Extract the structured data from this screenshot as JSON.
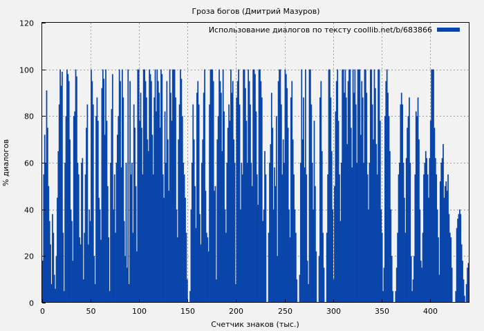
{
  "chart_data": {
    "type": "bar",
    "title": "Гроза богов (Дмитрий Мазуров)",
    "xlabel": "Счетчик знаков (тыс.)",
    "ylabel": "% диалогов",
    "xlim": [
      0,
      440
    ],
    "ylim": [
      0,
      120
    ],
    "x_ticks": [
      0,
      50,
      100,
      150,
      200,
      250,
      300,
      350,
      400
    ],
    "y_ticks": [
      0,
      20,
      40,
      60,
      80,
      100,
      120
    ],
    "grid": true,
    "legend_position": "top-right",
    "series": [
      {
        "name": "Использование диалогов по тексту coollib.net/b/683866",
        "color": "#0a46aa",
        "step": 1,
        "values": [
          18,
          55,
          72,
          60,
          91,
          75,
          50,
          35,
          25,
          8,
          38,
          30,
          12,
          6,
          20,
          45,
          65,
          85,
          100,
          93,
          99,
          30,
          5,
          60,
          80,
          100,
          98,
          95,
          70,
          40,
          35,
          18,
          80,
          82,
          100,
          97,
          60,
          55,
          28,
          25,
          60,
          62,
          10,
          30,
          55,
          75,
          85,
          25,
          40,
          35,
          100,
          95,
          85,
          20,
          8,
          80,
          88,
          78,
          45,
          40,
          27,
          92,
          100,
          96,
          72,
          100,
          78,
          50,
          28,
          5,
          60,
          83,
          98,
          40,
          55,
          30,
          60,
          72,
          80,
          100,
          95,
          58,
          100,
          88,
          35,
          20,
          60,
          15,
          100,
          8,
          95,
          55,
          60,
          30,
          85,
          75,
          50,
          22,
          100,
          100,
          78,
          90,
          75,
          55,
          100,
          100,
          95,
          88,
          70,
          65,
          100,
          98,
          95,
          72,
          55,
          88,
          100,
          82,
          100,
          95,
          90,
          75,
          100,
          98,
          55,
          45,
          82,
          60,
          95,
          70,
          48,
          100,
          90,
          78,
          100,
          100,
          100,
          88,
          40,
          28,
          70,
          85,
          100,
          96,
          80,
          60,
          55,
          45,
          30,
          10,
          0,
          0,
          5,
          40,
          60,
          85,
          70,
          50,
          32,
          90,
          95,
          85,
          38,
          25,
          60,
          70,
          90,
          100,
          48,
          30,
          28,
          22,
          85,
          100,
          100,
          100,
          95,
          48,
          50,
          10,
          70,
          80,
          100,
          95,
          90,
          65,
          100,
          82,
          40,
          30,
          60,
          75,
          85,
          78,
          100,
          90,
          95,
          70,
          60,
          8,
          88,
          95,
          100,
          85,
          40,
          60,
          55,
          100,
          100,
          92,
          78,
          60,
          100,
          95,
          85,
          60,
          50,
          100,
          100,
          98,
          82,
          55,
          42,
          100,
          100,
          95,
          88,
          35,
          40,
          65,
          55,
          0,
          0,
          30,
          60,
          68,
          90,
          75,
          40,
          58,
          50,
          80,
          20,
          95,
          100,
          100,
          85,
          55,
          70,
          60,
          100,
          98,
          92,
          75,
          40,
          28,
          88,
          95,
          70,
          55,
          40,
          30,
          10,
          0,
          0,
          12,
          60,
          100,
          70,
          88,
          58,
          100,
          55,
          18,
          8,
          100,
          100,
          85,
          60,
          40,
          78,
          50,
          22,
          0,
          0,
          20,
          88,
          95,
          65,
          30,
          15,
          0,
          0,
          30,
          55,
          100,
          100,
          88,
          65,
          40,
          10,
          50,
          82,
          95,
          100,
          78,
          55,
          35,
          60,
          100,
          100,
          90,
          100,
          88,
          68,
          95,
          100,
          100,
          75,
          58,
          100,
          90,
          100,
          85,
          60,
          100,
          100,
          100,
          72,
          95,
          88,
          60,
          100,
          100,
          90,
          55,
          40,
          60,
          100,
          100,
          85,
          70,
          100,
          92,
          68,
          55,
          100,
          100,
          78,
          40,
          30,
          5,
          15,
          80,
          95,
          100,
          90,
          80,
          65,
          40,
          20,
          5,
          0,
          0,
          5,
          15,
          30,
          55,
          60,
          85,
          90,
          85,
          60,
          45,
          30,
          62,
          75,
          80,
          88,
          60,
          20,
          5,
          10,
          20,
          55,
          82,
          80,
          88,
          70,
          40,
          18,
          15,
          30,
          55,
          60,
          65,
          62,
          55,
          45,
          62,
          78,
          100,
          100,
          100,
          75,
          62,
          55,
          40,
          28,
          12,
          52,
          60,
          62,
          68,
          45,
          50,
          52,
          48,
          55,
          38,
          30,
          28,
          15,
          0,
          0,
          0,
          5,
          32,
          36,
          38,
          40,
          38,
          25,
          18,
          10,
          3,
          0,
          8,
          15,
          17
        ]
      }
    ]
  }
}
